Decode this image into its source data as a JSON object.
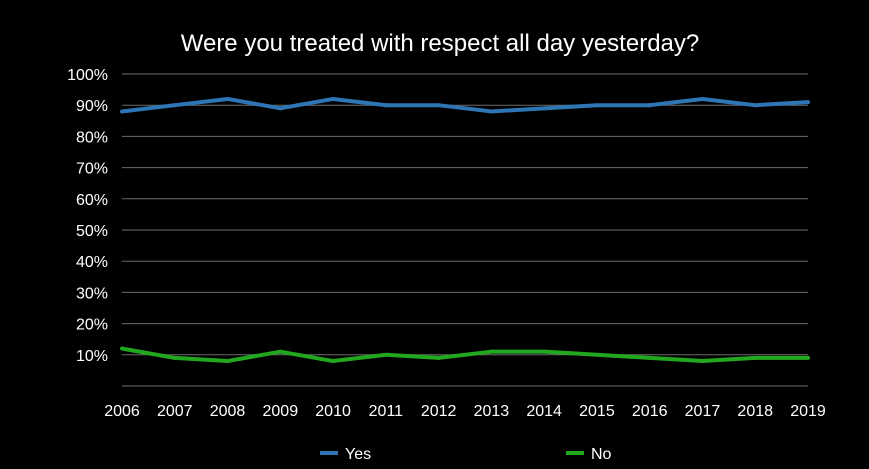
{
  "chart_data": {
    "type": "line",
    "title": "Were you treated with respect all day yesterday?",
    "xlabel": "",
    "ylabel": "",
    "x": [
      "2006",
      "2007",
      "2008",
      "2009",
      "2010",
      "2011",
      "2012",
      "2013",
      "2014",
      "2015",
      "2016",
      "2017",
      "2018",
      "2019"
    ],
    "ylim": [
      0,
      100
    ],
    "y_ticks": [
      10,
      20,
      30,
      40,
      50,
      60,
      70,
      80,
      90,
      100
    ],
    "y_tick_labels": [
      "10%",
      "20%",
      "30%",
      "40%",
      "50%",
      "60%",
      "70%",
      "80%",
      "90%",
      "100%"
    ],
    "grid": true,
    "legend_position": "bottom",
    "background": "#000000",
    "series": [
      {
        "name": "Yes",
        "color": "#2e75b6",
        "values": [
          88,
          90,
          92,
          89,
          92,
          90,
          90,
          88,
          89,
          90,
          90,
          92,
          90,
          91
        ]
      },
      {
        "name": "No",
        "color": "#21a81f",
        "values": [
          12,
          9,
          8,
          11,
          8,
          10,
          9,
          11,
          11,
          10,
          9,
          8,
          9,
          9
        ]
      }
    ]
  }
}
